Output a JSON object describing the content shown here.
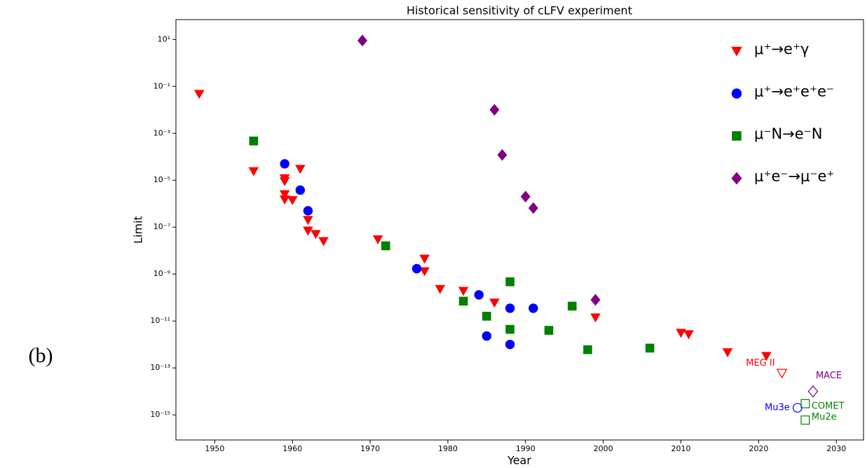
{
  "panel_label": "(b)",
  "chart_data": {
    "type": "scatter",
    "title": "Historical sensitivity of cLFV experiment",
    "x_label": "Year",
    "y_label": "Limit",
    "xlim": [
      1945,
      2033.5
    ],
    "ylim": [
      8.5e-17,
      70
    ],
    "log_y": true,
    "xticks": [
      1950,
      1960,
      1970,
      1980,
      1990,
      2000,
      2010,
      2020,
      2030
    ],
    "yticks": [
      {
        "value": 10,
        "label": "10¹"
      },
      {
        "value": 0.1,
        "label": "10⁻¹"
      },
      {
        "value": 0.001,
        "label": "10⁻³"
      },
      {
        "value": 1e-05,
        "label": "10⁻⁵"
      },
      {
        "value": 1e-07,
        "label": "10⁻⁷"
      },
      {
        "value": 1e-09,
        "label": "10⁻⁹"
      },
      {
        "value": 1e-11,
        "label": "10⁻¹¹"
      },
      {
        "value": 1e-13,
        "label": "10⁻¹³"
      },
      {
        "value": 1e-15,
        "label": "10⁻¹⁵"
      }
    ],
    "legend": "upper right",
    "series": [
      {
        "name": "μ⁺→e⁺γ",
        "color": "#ff0000",
        "marker": "v",
        "x": [
          1948,
          1955,
          1959,
          1959,
          1959,
          1959,
          1960,
          1961,
          1962,
          1962,
          1963,
          1964,
          1971,
          1977,
          1977,
          1979,
          1982,
          1986,
          1999,
          2010,
          2011,
          2016,
          2021
        ],
        "values": [
          0.047,
          2.4e-05,
          1.2e-05,
          9e-06,
          2.5e-06,
          1.5e-06,
          1.4e-06,
          3e-05,
          2e-07,
          7e-08,
          5e-08,
          2.5e-08,
          3e-08,
          4.5e-09,
          1.3e-09,
          2.3e-10,
          1.9e-10,
          6e-11,
          1.4e-11,
          3.1e-12,
          2.7e-12,
          4.6e-13,
          3.2e-13
        ]
      },
      {
        "name": "μ⁺→e⁺e⁺e⁻",
        "color": "#0000ff",
        "marker": "o",
        "x": [
          1959,
          1961,
          1962,
          1976,
          1984,
          1985,
          1988,
          1988,
          1991
        ],
        "values": [
          5e-05,
          3.8e-06,
          5e-07,
          1.7e-09,
          1.3e-10,
          2.3e-12,
          3.5e-11,
          1e-12,
          3.5e-11
        ]
      },
      {
        "name": "μ⁻N→e⁻N",
        "color": "#008000",
        "marker": "s",
        "x": [
          1955,
          1972,
          1982,
          1985,
          1988,
          1988,
          1993,
          1996,
          1998,
          2006
        ],
        "values": [
          0.00047,
          1.6e-08,
          7e-11,
          1.6e-11,
          4.7e-10,
          4.4e-12,
          4e-12,
          4.3e-11,
          6e-13,
          7e-13
        ]
      },
      {
        "name": "μ⁺e⁻→μ⁻e⁺",
        "color": "#800080",
        "marker": "D",
        "x": [
          1969,
          1986,
          1987,
          1990,
          1991,
          1999
        ],
        "values": [
          9,
          0.01,
          0.00012,
          2e-06,
          6.5e-07,
          8e-11
        ]
      }
    ],
    "projections": [
      {
        "text": "MEG II",
        "x": 2023,
        "value": 6e-14,
        "color": "#ff0000",
        "marker": "v"
      },
      {
        "text": "Mu3e",
        "x": 2025,
        "value": 2e-15,
        "color": "#0000ff",
        "marker": "o"
      },
      {
        "text": "COMET",
        "x": 2026,
        "value": 3e-15,
        "color": "#008000",
        "marker": "s"
      },
      {
        "text": "Mu2e",
        "x": 2026,
        "value": 6e-16,
        "color": "#008000",
        "marker": "s"
      },
      {
        "text": "MACE",
        "x": 2027,
        "value": 1e-14,
        "color": "#800080",
        "marker": "D"
      }
    ]
  }
}
